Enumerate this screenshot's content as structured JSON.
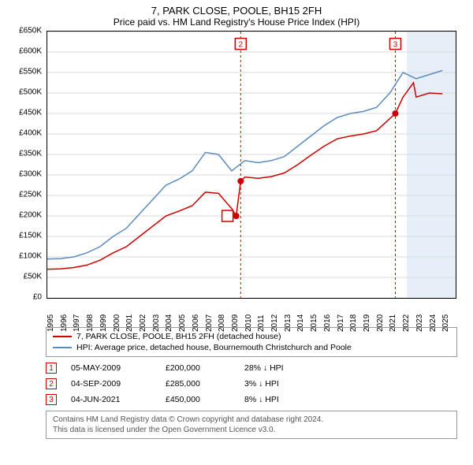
{
  "title": "7, PARK CLOSE, POOLE, BH15 2FH",
  "subtitle": "Price paid vs. HM Land Registry's House Price Index (HPI)",
  "chart": {
    "type": "line",
    "background_color": "#ffffff",
    "grid_color": "#d9d9d9",
    "border_color": "#000000",
    "ylim": [
      0,
      650000
    ],
    "ytick_step": 50000,
    "yticks": [
      "£0",
      "£50K",
      "£100K",
      "£150K",
      "£200K",
      "£250K",
      "£300K",
      "£350K",
      "£400K",
      "£450K",
      "£500K",
      "£550K",
      "£600K",
      "£650K"
    ],
    "xlim": [
      1995,
      2026
    ],
    "xticks": [
      1995,
      1996,
      1997,
      1998,
      1999,
      2000,
      2001,
      2002,
      2003,
      2004,
      2005,
      2006,
      2007,
      2008,
      2009,
      2010,
      2011,
      2012,
      2013,
      2014,
      2015,
      2016,
      2017,
      2018,
      2019,
      2020,
      2021,
      2022,
      2023,
      2024,
      2025
    ],
    "highlight_band": {
      "x_start": 2022.3,
      "x_end": 2026,
      "color": "#e6eef7"
    },
    "series": [
      {
        "name": "hpi",
        "label": "HPI: Average price, detached house, Bournemouth Christchurch and Poole",
        "color": "#5b8bbf",
        "line_width": 1.5,
        "points": [
          [
            1995,
            95000
          ],
          [
            1996,
            96000
          ],
          [
            1997,
            100000
          ],
          [
            1998,
            110000
          ],
          [
            1999,
            125000
          ],
          [
            2000,
            150000
          ],
          [
            2001,
            170000
          ],
          [
            2002,
            205000
          ],
          [
            2003,
            240000
          ],
          [
            2004,
            275000
          ],
          [
            2005,
            290000
          ],
          [
            2006,
            310000
          ],
          [
            2007,
            355000
          ],
          [
            2008,
            350000
          ],
          [
            2009,
            310000
          ],
          [
            2010,
            335000
          ],
          [
            2011,
            330000
          ],
          [
            2012,
            335000
          ],
          [
            2013,
            345000
          ],
          [
            2014,
            370000
          ],
          [
            2015,
            395000
          ],
          [
            2016,
            420000
          ],
          [
            2017,
            440000
          ],
          [
            2018,
            450000
          ],
          [
            2019,
            455000
          ],
          [
            2020,
            465000
          ],
          [
            2021,
            500000
          ],
          [
            2022,
            550000
          ],
          [
            2023,
            535000
          ],
          [
            2024,
            545000
          ],
          [
            2025,
            555000
          ]
        ]
      },
      {
        "name": "price_paid",
        "label": "7, PARK CLOSE, POOLE, BH15 2FH (detached house)",
        "color": "#cc0000",
        "line_width": 1.5,
        "points": [
          [
            1995,
            70000
          ],
          [
            1996,
            71000
          ],
          [
            1997,
            74000
          ],
          [
            1998,
            80000
          ],
          [
            1999,
            92000
          ],
          [
            2000,
            110000
          ],
          [
            2001,
            125000
          ],
          [
            2002,
            150000
          ],
          [
            2003,
            175000
          ],
          [
            2004,
            200000
          ],
          [
            2005,
            212000
          ],
          [
            2006,
            225000
          ],
          [
            2007,
            258000
          ],
          [
            2008,
            255000
          ],
          [
            2009.0,
            218000
          ],
          [
            2009.34,
            200000
          ],
          [
            2009.68,
            285000
          ],
          [
            2010,
            295000
          ],
          [
            2011,
            292000
          ],
          [
            2012,
            296000
          ],
          [
            2013,
            305000
          ],
          [
            2014,
            325000
          ],
          [
            2015,
            348000
          ],
          [
            2016,
            370000
          ],
          [
            2017,
            388000
          ],
          [
            2018,
            395000
          ],
          [
            2019,
            400000
          ],
          [
            2020,
            408000
          ],
          [
            2021.42,
            450000
          ],
          [
            2022,
            490000
          ],
          [
            2022.8,
            525000
          ],
          [
            2023,
            490000
          ],
          [
            2024,
            500000
          ],
          [
            2025,
            498000
          ]
        ]
      }
    ],
    "event_markers": [
      {
        "n": "1",
        "x": 2009.34,
        "y": 200000
      },
      {
        "n": "2",
        "x": 2009.68,
        "y": 285000
      },
      {
        "n": "3",
        "x": 2021.42,
        "y": 450000
      }
    ],
    "event_label_positions": [
      {
        "n": "2",
        "x": 2009.68,
        "y_label": 620000
      },
      {
        "n": "3",
        "x": 2021.42,
        "y_label": 620000
      }
    ]
  },
  "legend": {
    "items": [
      {
        "color": "#cc0000",
        "text": "7, PARK CLOSE, POOLE, BH15 2FH (detached house)"
      },
      {
        "color": "#5b8bbf",
        "text": "HPI: Average price, detached house, Bournemouth Christchurch and Poole"
      }
    ]
  },
  "marker_table": [
    {
      "n": "1",
      "date": "05-MAY-2009",
      "price": "£200,000",
      "pct": "28% ↓ HPI"
    },
    {
      "n": "2",
      "date": "04-SEP-2009",
      "price": "£285,000",
      "pct": "3% ↓ HPI"
    },
    {
      "n": "3",
      "date": "04-JUN-2021",
      "price": "£450,000",
      "pct": "8% ↓ HPI"
    }
  ],
  "footer": {
    "line1": "Contains HM Land Registry data © Crown copyright and database right 2024.",
    "line2": "This data is licensed under the Open Government Licence v3.0."
  }
}
